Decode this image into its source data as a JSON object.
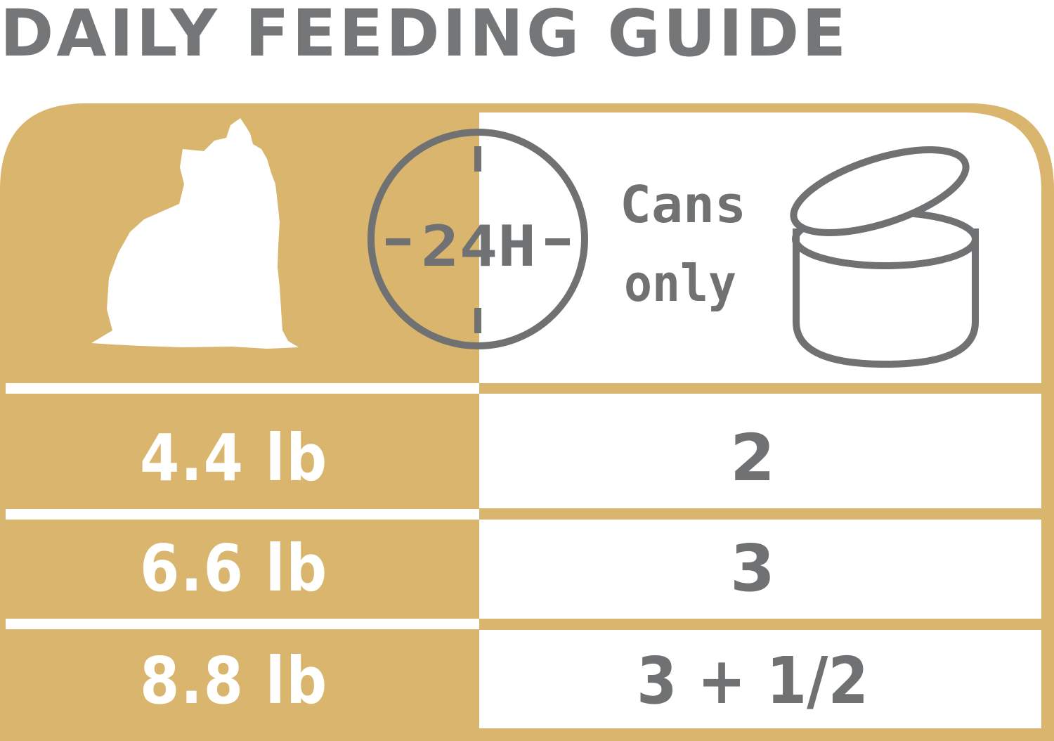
{
  "title": "DAILY FEEDING GUIDE",
  "header": {
    "clock_label": "24H",
    "cans_line1": "Cans",
    "cans_line2": "only"
  },
  "rows": [
    {
      "weight": "4.4 lb",
      "cans": "2"
    },
    {
      "weight": "6.6 lb",
      "cans": "3"
    },
    {
      "weight": "8.8 lb",
      "cans": "3 + 1/2"
    }
  ],
  "colors": {
    "gold": "#D9B56E",
    "gray": "#6F7173",
    "white": "#FFFFFF"
  },
  "icons": [
    "dog-silhouette-icon",
    "clock-24h-icon",
    "open-can-icon"
  ]
}
